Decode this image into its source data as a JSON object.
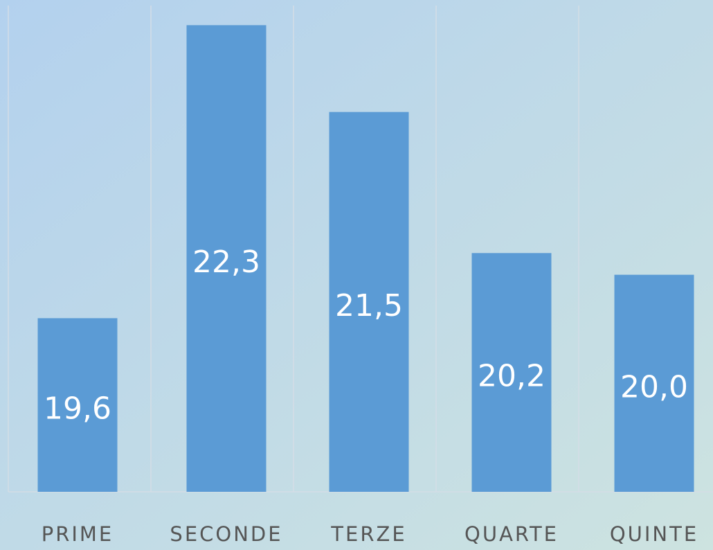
{
  "chart_data": {
    "type": "bar",
    "categories": [
      "PRIME",
      "SECONDE",
      "TERZE",
      "QUARTE",
      "QUINTE"
    ],
    "values": [
      19.6,
      22.3,
      21.5,
      20.2,
      20.0
    ],
    "value_labels": [
      "19,6",
      "22,3",
      "21,5",
      "20,2",
      "20,0"
    ],
    "color": "#5b9bd5",
    "ylim": [
      18,
      22.5
    ]
  }
}
